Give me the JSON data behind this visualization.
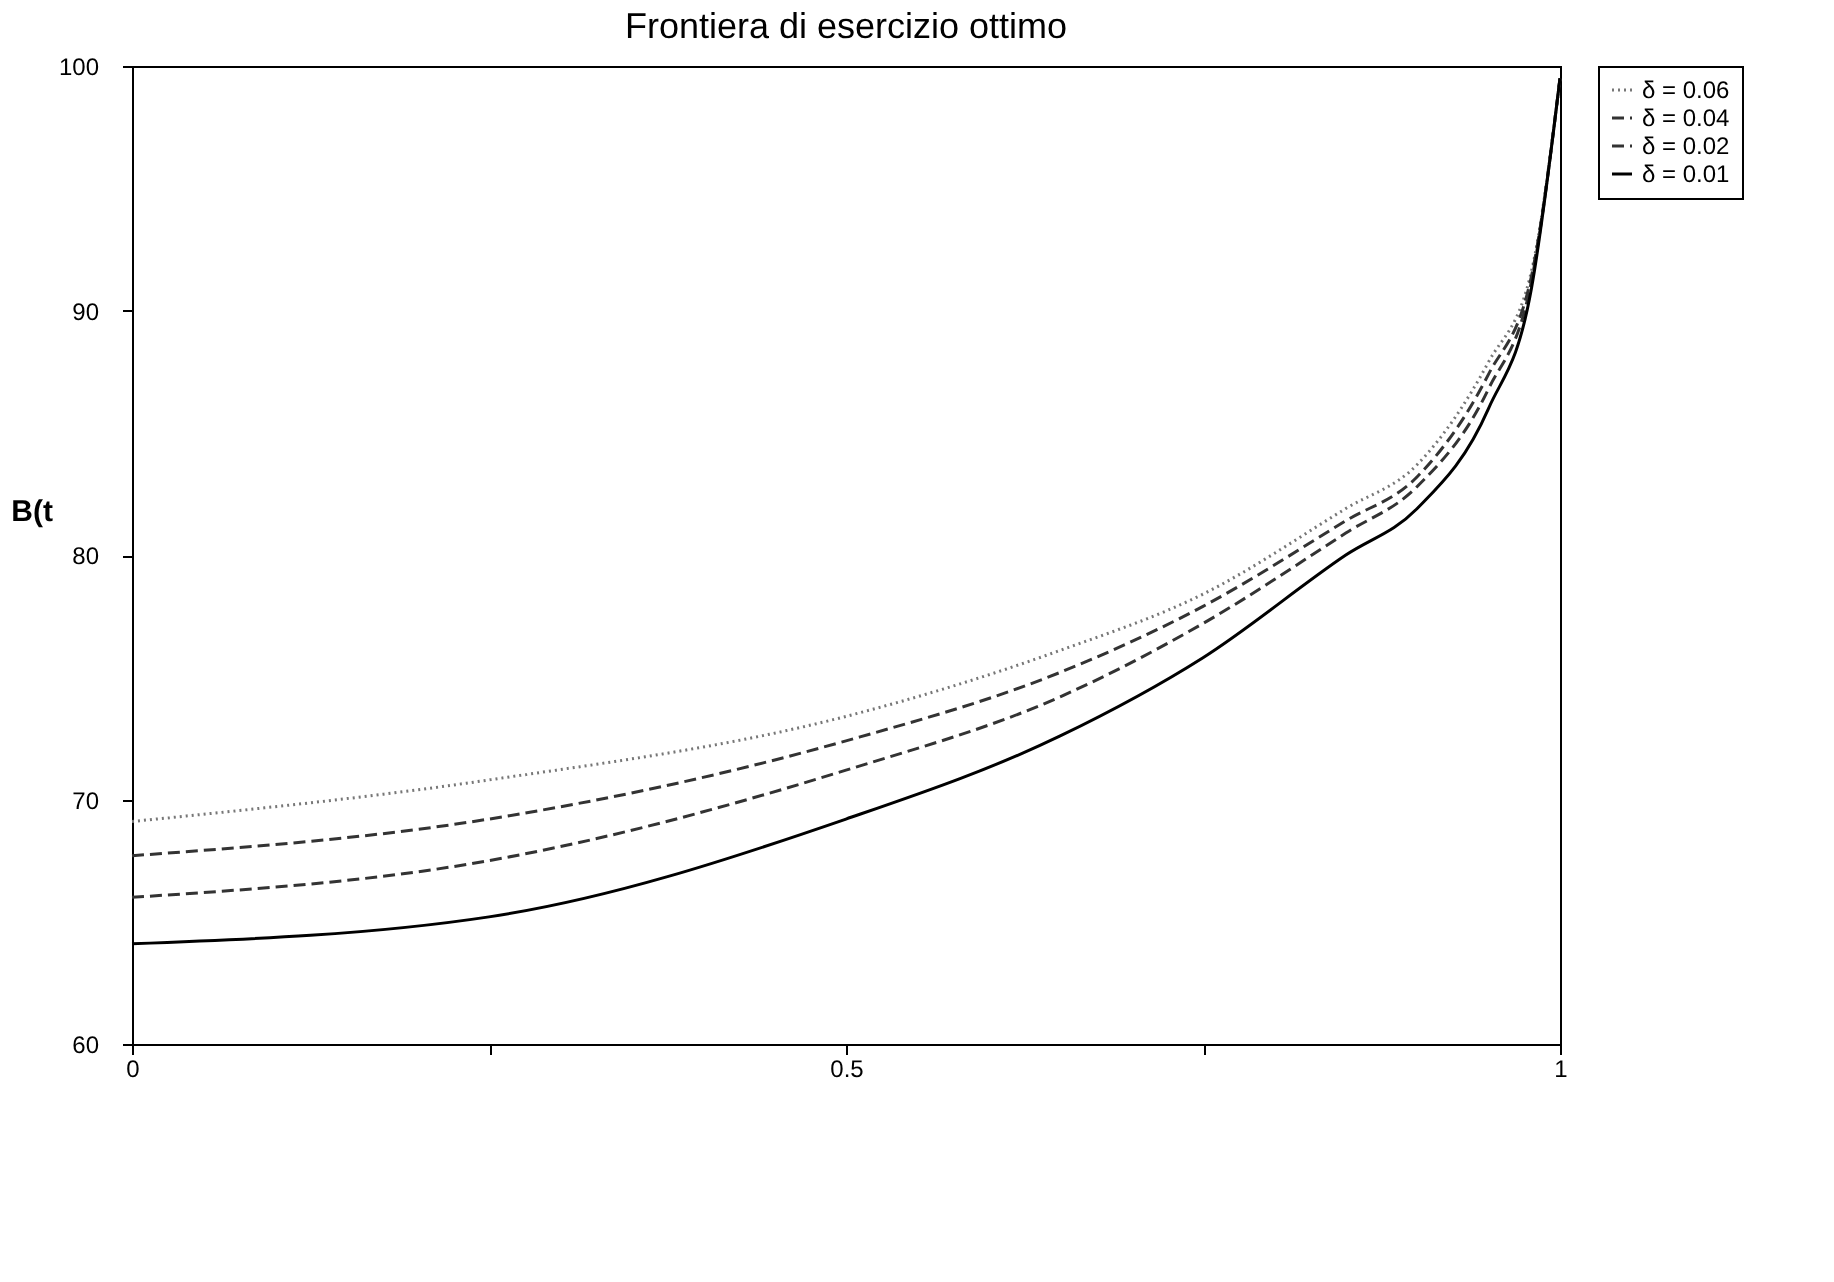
{
  "chart_data": {
    "type": "line",
    "title": "Frontiera di esercizio ottimo",
    "ylabel": "B(t",
    "x": [
      0,
      0.25,
      0.5,
      0.65,
      0.75,
      0.85,
      0.9,
      0.95,
      0.98,
      1
    ],
    "series": [
      {
        "name": "δ = 0.06",
        "color": "#777777",
        "line_style": "dotted",
        "values": [
          69.1,
          70.8,
          73.4,
          76.1,
          78.4,
          81.9,
          83.7,
          87.9,
          91.6,
          99.5
        ]
      },
      {
        "name": "δ = 0.04",
        "color": "#333333",
        "line_style": "dashed",
        "values": [
          67.7,
          69.2,
          72.4,
          75.2,
          77.9,
          81.4,
          83.2,
          87.4,
          91.4,
          99.5
        ]
      },
      {
        "name": "δ = 0.02",
        "color": "#333333",
        "line_style": "dashed",
        "values": [
          66.0,
          67.5,
          71.2,
          74.2,
          77.2,
          80.9,
          82.8,
          86.8,
          91.2,
          99.5
        ]
      },
      {
        "name": "δ = 0.01",
        "color": "#000000",
        "line_style": "solid",
        "values": [
          64.1,
          65.2,
          69.2,
          72.6,
          75.8,
          80.0,
          81.9,
          86.0,
          90.9,
          99.5
        ]
      }
    ],
    "xlim": [
      0,
      1
    ],
    "xticks": [
      0,
      {
        "value": 0.25,
        "label": null
      },
      0.5,
      {
        "value": 0.75,
        "label": null
      },
      1
    ],
    "ylim": [
      60,
      100
    ],
    "yticks": [
      60,
      70,
      80,
      90,
      100
    ],
    "grid": false,
    "legend": "right",
    "marker": "none"
  }
}
